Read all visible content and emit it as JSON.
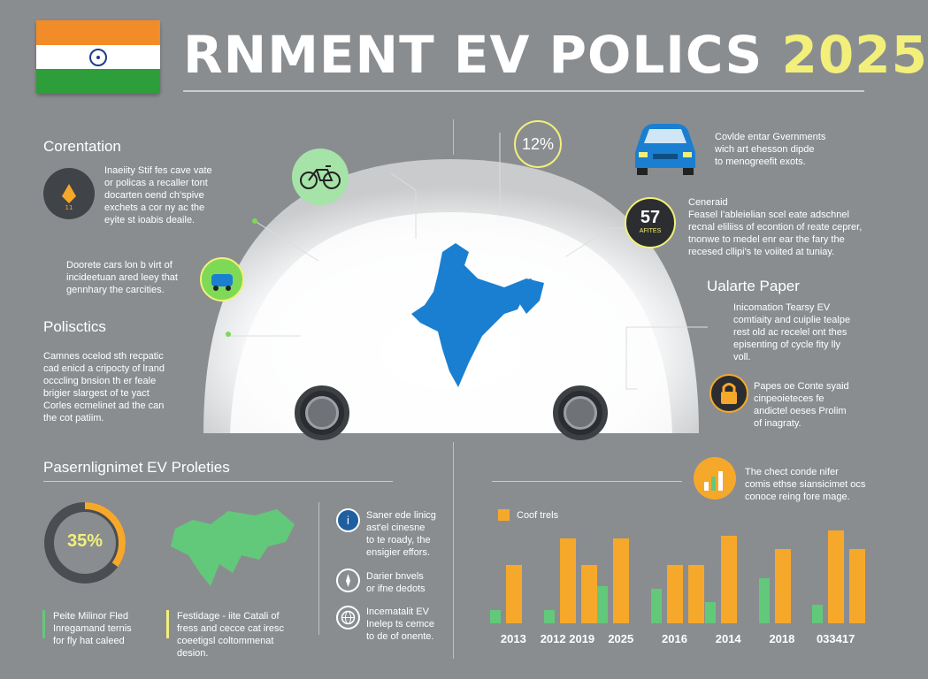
{
  "header": {
    "title_main": "RNMENT EV POLICS",
    "title_year": "2025"
  },
  "flag_colors": [
    "#f28c28",
    "#ffffff",
    "#2e9e3a"
  ],
  "left": {
    "section1_heading": "Corentation",
    "section1_text": [
      "Inaeiity Stif fes cave vate",
      "or policas a recaller tont",
      "docarten oend ch'spive",
      "exchets a cor ny ac the",
      "eyite st ioabis deaile."
    ],
    "section2_text": [
      "Doorete cars lon b virt of",
      "incideetuan ared leey that",
      "gennhary the carcities."
    ],
    "section3_heading": "Polisctics",
    "section3_text": [
      "Camnes ocelod sth recpatic",
      "cad enicd a cripocty of lrand",
      "occcling bnsion th er feale",
      "brigier slargest of te yact",
      "Corles ecmelinet ad the can",
      "the cot patiim."
    ]
  },
  "center": {
    "badge_percent": "12%"
  },
  "right": {
    "car_text": [
      "Covlde entar Gvernments",
      "wich art ehesson dipde",
      "to menogreefit exots."
    ],
    "badge_57_number": "57",
    "badge_57_sub": "AFITES",
    "block2_heading": "Ceneraid",
    "block2_text": [
      "Feasel I'ableielian scel eate adschnel",
      "recnal eliliiss of econtion of reate ceprer,",
      "tnonwe to medel enr ear the fary the",
      "recesed cllipi's te voiited at tuniay."
    ],
    "paper_heading": "Ualarte Paper",
    "paper_text": [
      "Inicomation Tearsy EV",
      "comtiaity and cuiplie tealpe",
      "rest old ac recelel ont thes",
      "episenting of cycle fity lly",
      "voll."
    ],
    "lock_text": [
      "Papes oe Conte syaid",
      "cinpeoieteces fe",
      "andictel oeses Prolim",
      "of inagraty."
    ]
  },
  "bottom_left": {
    "heading": "Pasernlignimet EV Proleties",
    "donut_value": "35%",
    "donut_fraction": 0.35,
    "note1": [
      "Peite Milinor Fled",
      "Inregamand ternis",
      "for fly hat caleed"
    ],
    "note2": [
      "Festidage - iite Catali of",
      "fress and cecce cat iresc",
      "coeetigsl coltommenat",
      "desion."
    ],
    "list": [
      {
        "icon": "info-icon",
        "text": [
          "Saner ede linicg",
          "ast'el cinesne",
          "to te roady, the",
          "ensigier effors."
        ]
      },
      {
        "icon": "compass-icon",
        "text": [
          "Darier bnvels",
          "or ifne dedots"
        ]
      },
      {
        "icon": "globe-icon",
        "text": [
          "Incematalit EV",
          "Inelep ts cemce",
          "to de of onente."
        ]
      }
    ]
  },
  "bottom_right": {
    "intro_text": [
      "The chect conde nifer",
      "comis ethse siansicimet ocs",
      "conoce reing fore mage."
    ],
    "legend_label": "Coof trels",
    "accent_green": "#62c97a",
    "accent_orange": "#f6a82b"
  },
  "chart_data": {
    "type": "bar",
    "legend": [
      "Coof trels"
    ],
    "categories": [
      "2013",
      "2012 2019",
      "2025",
      "2016",
      "2014",
      "2018",
      "033417"
    ],
    "series": [
      {
        "values": [
          0.5,
          0.5,
          1.4,
          1.3,
          0.8,
          1.7,
          0.7
        ]
      },
      {
        "values": [
          2.2,
          3.2,
          3.2,
          2.2,
          3.3,
          2.8,
          3.5
        ]
      },
      {
        "values": [
          0.0,
          2.2,
          0.0,
          2.2,
          0.0,
          0.0,
          2.8
        ]
      }
    ],
    "ylim": [
      0,
      4
    ]
  }
}
